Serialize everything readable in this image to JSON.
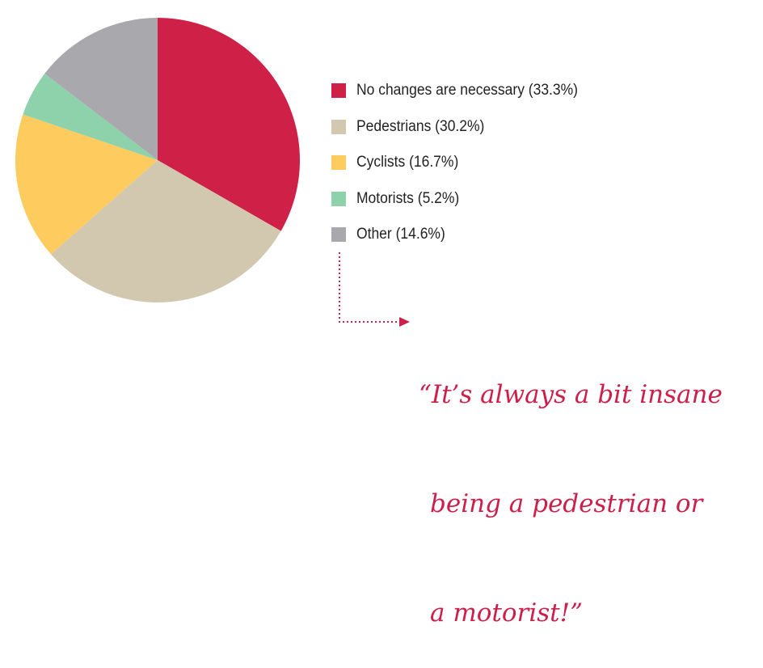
{
  "chart_data": {
    "type": "pie",
    "title": "",
    "slices": [
      {
        "label": "No changes are necessary (33.3%)",
        "value": 33.3,
        "color": "#cf2148"
      },
      {
        "label": "Pedestrians (30.2%)",
        "value": 30.2,
        "color": "#d2c8b0"
      },
      {
        "label": "Cyclists (16.7%)",
        "value": 16.7,
        "color": "#fecb5f"
      },
      {
        "label": "Motorists (5.2%)",
        "value": 5.2,
        "color": "#8ed2ab"
      },
      {
        "label": "Other (14.6%)",
        "value": 14.6,
        "color": "#a9a8ad"
      }
    ],
    "legend_position": "right",
    "start_angle": "top, clockwise"
  },
  "annotation": {
    "color": "#cc1f4a",
    "quote_lines": [
      "“It’s always a bit insane",
      "being a pedestrian or",
      "a motorist!”"
    ]
  }
}
